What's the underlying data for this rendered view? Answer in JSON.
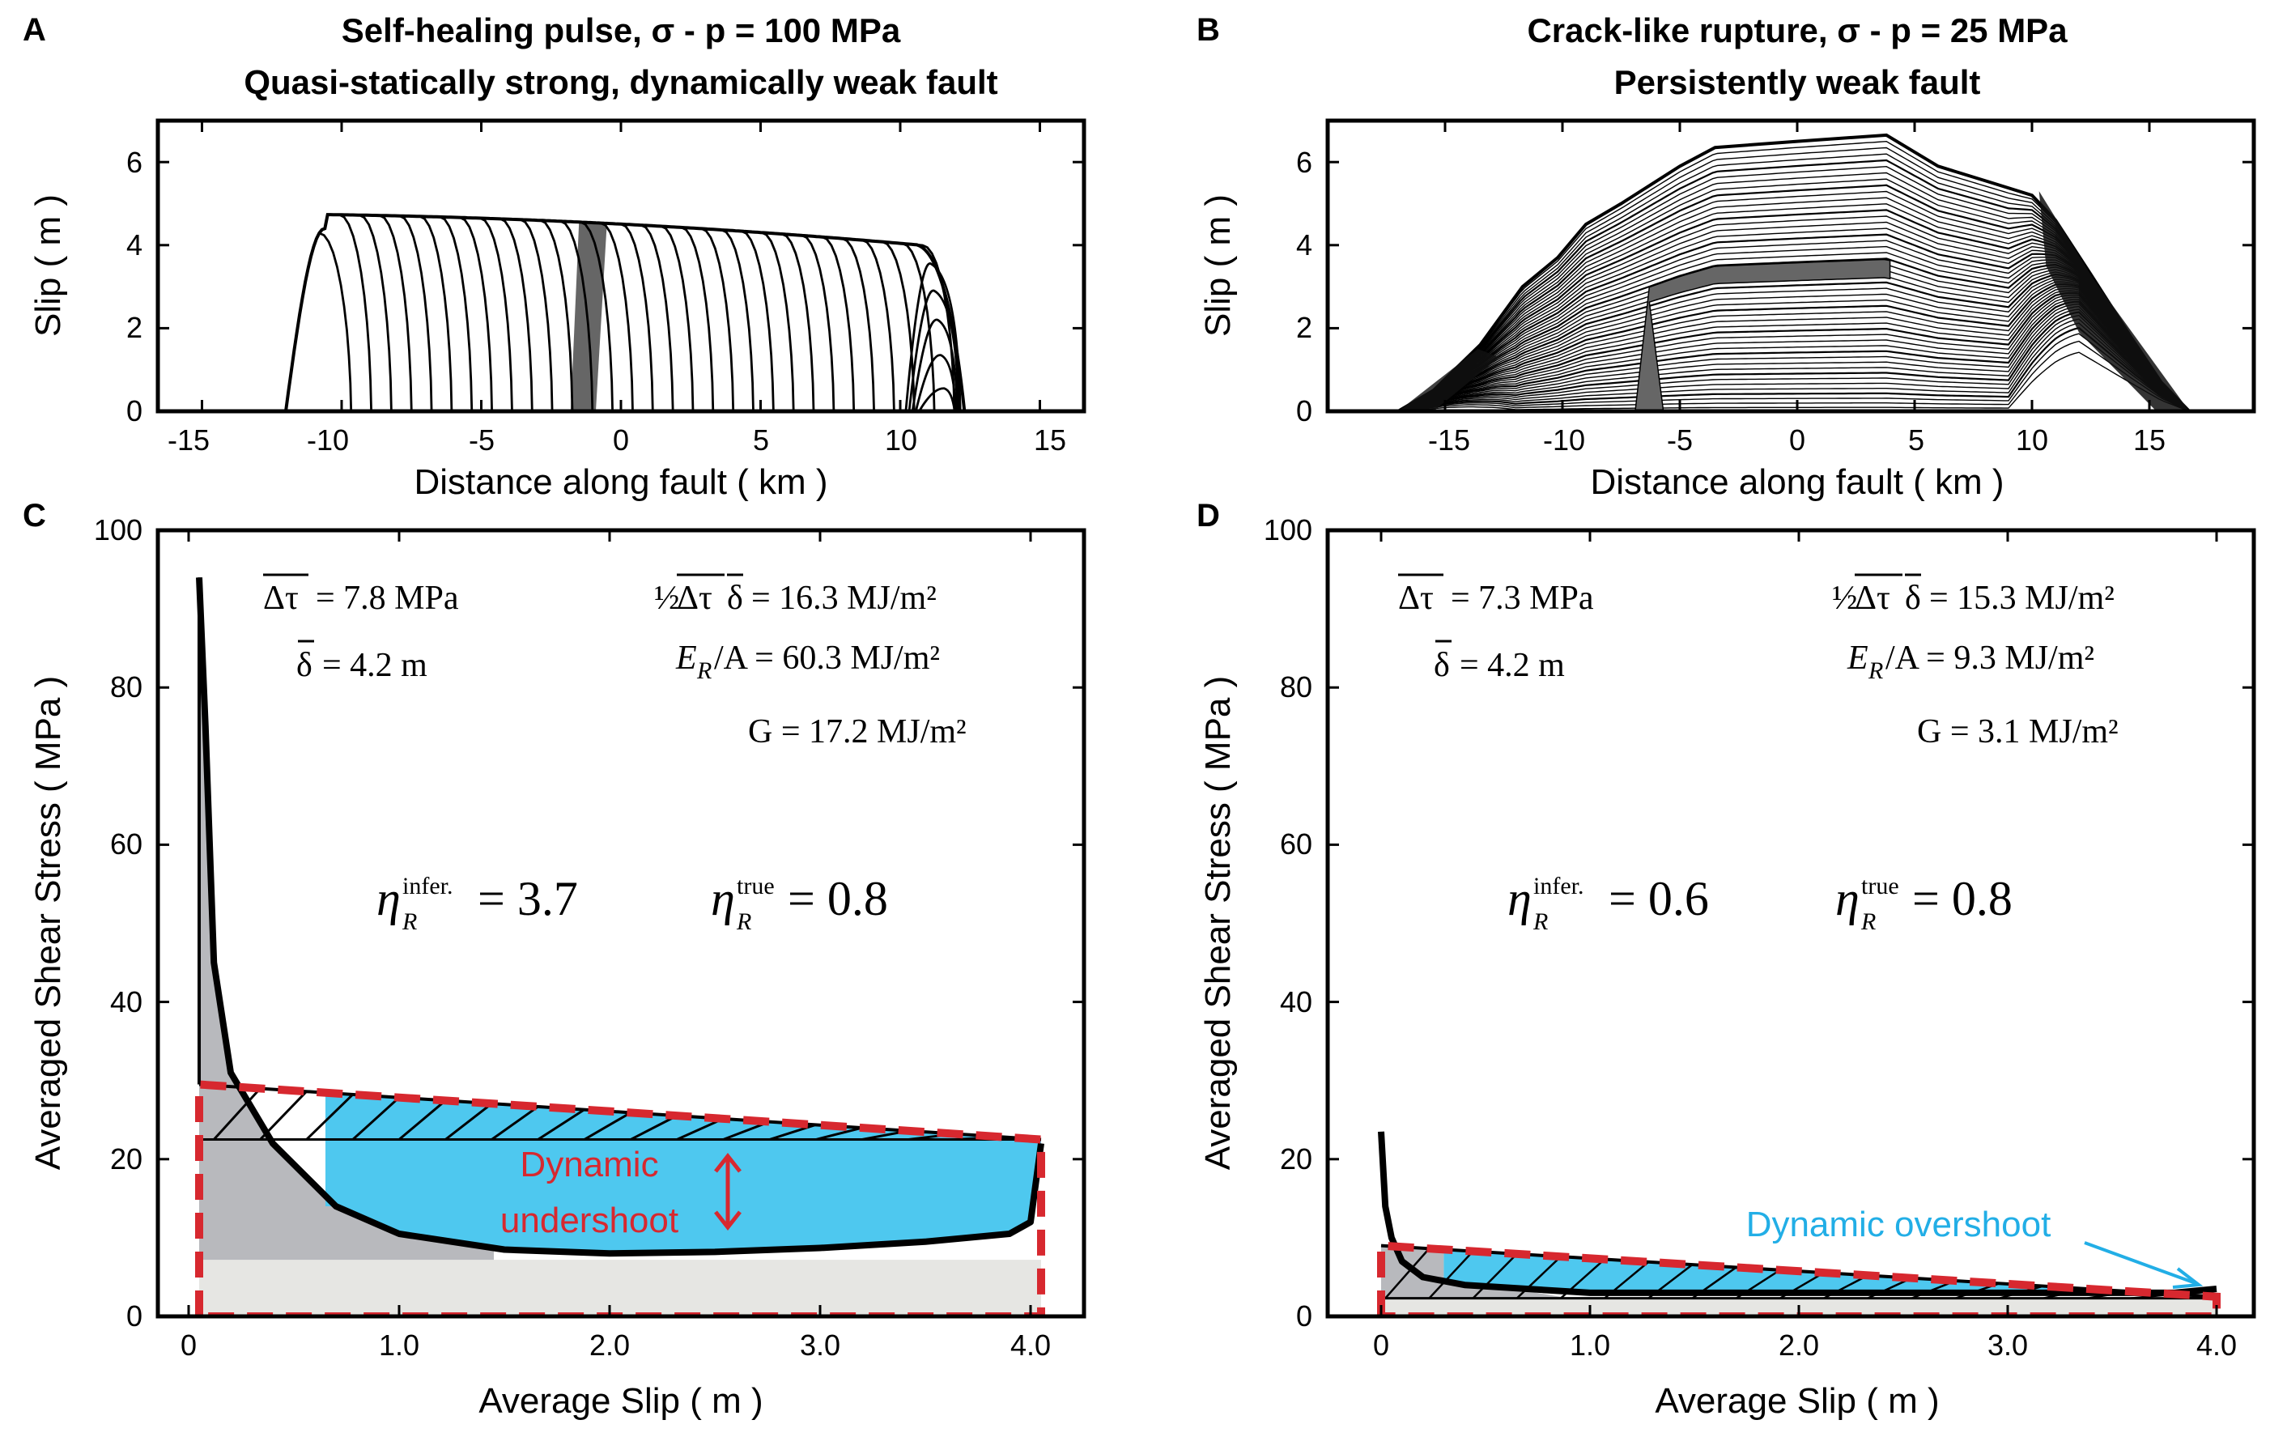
{
  "panels": [
    {
      "letter": "A",
      "title_line1": "Self-healing pulse, σ - p = 100 MPa",
      "title_line2": "Quasi-statically strong, dynamically weak fault",
      "xlabel": "Distance along fault ( km )",
      "ylabel": "Slip ( m )",
      "xticks": [
        "-15",
        "-10",
        "-5",
        "0",
        "5",
        "10",
        "15"
      ],
      "yticks": [
        "0",
        "2",
        "4",
        "6"
      ]
    },
    {
      "letter": "B",
      "title_line1": "Crack-like rupture,  σ - p = 25 MPa",
      "title_line2": "Persistently weak fault",
      "xlabel": "Distance along fault ( km )",
      "ylabel": "Slip ( m )",
      "xticks": [
        "-15",
        "-10",
        "-5",
        "0",
        "5",
        "10",
        "15"
      ],
      "yticks": [
        "0",
        "2",
        "4",
        "6"
      ]
    },
    {
      "letter": "C",
      "xlabel": "Average Slip ( m )",
      "ylabel": "Averaged Shear Stress ( MPa )",
      "xticks": [
        "0",
        "1.0",
        "2.0",
        "3.0",
        "4.0"
      ],
      "yticks": [
        "0",
        "20",
        "40",
        "60",
        "80",
        "100"
      ],
      "eq_dtau_lhs": "Δτ",
      "eq_dtau_rhs": "= 7.8 MPa",
      "eq_delta_lhs": "δ",
      "eq_delta_rhs": "= 4.2 m",
      "eq_half_prefix": "½",
      "eq_half_rhs": "= 16.3 MJ/m²",
      "eq_er_lhs": "E",
      "eq_er_sub": "R",
      "eq_er_rhs": "/A = 60.3 MJ/m²",
      "eq_g": "G = 17.2 MJ/m²",
      "eta_infer_sup": "infer.",
      "eta_infer_val": "= 3.7",
      "eta_true_sup": "true",
      "eta_true_val": "= 0.8",
      "annot_line1": "Dynamic",
      "annot_line2": "undershoot"
    },
    {
      "letter": "D",
      "xlabel": "Average Slip ( m )",
      "ylabel": "Averaged Shear Stress ( MPa )",
      "xticks": [
        "0",
        "1.0",
        "2.0",
        "3.0",
        "4.0"
      ],
      "yticks": [
        "0",
        "20",
        "40",
        "60",
        "80",
        "100"
      ],
      "eq_dtau_lhs": "Δτ",
      "eq_dtau_rhs": "= 7.3 MPa",
      "eq_delta_lhs": "δ",
      "eq_delta_rhs": "= 4.2 m",
      "eq_half_prefix": "½",
      "eq_half_rhs": "= 15.3 MJ/m²",
      "eq_er_lhs": "E",
      "eq_er_sub": "R",
      "eq_er_rhs": "/A = 9.3 MJ/m²",
      "eq_g": "G = 3.1 MJ/m²",
      "eta_infer_sup": "infer.",
      "eta_infer_val": "= 0.6",
      "eta_true_sup": "true",
      "eta_true_val": "= 0.8",
      "annot_line1": "Dynamic overshoot"
    }
  ],
  "colors": {
    "blue_fill": "#4ec8ef",
    "grey_fill": "#b8b9bd",
    "light_grey_fill": "#e6e6e3",
    "red_dashed": "#d7282f",
    "blue_text": "#22aee6",
    "highlight_slip_contour": "#666666"
  },
  "chart_data": [
    {
      "type": "line",
      "panel": "A",
      "x_range": [
        -16.5,
        16.5
      ],
      "y_range": [
        0,
        7
      ],
      "series": [
        {
          "x": [
            -12,
            -10.5,
            -6,
            0,
            5,
            10.5,
            12
          ],
          "y": [
            0,
            4.4,
            4.6,
            4.45,
            4.3,
            4.1,
            0
          ]
        }
      ],
      "notes": "slip contours at successive times for a self-healing pulse; one contour band near x=-1 highlighted grey"
    },
    {
      "type": "line",
      "panel": "B",
      "x_range": [
        -20,
        20
      ],
      "y_range": [
        0,
        7
      ],
      "series": [
        {
          "x": [
            -17,
            -11.5,
            -7,
            -3,
            4,
            10,
            14,
            16.5
          ],
          "y": [
            0,
            3,
            4.8,
            6.3,
            6.6,
            5.2,
            2,
            0
          ]
        }
      ],
      "notes": "crack-like rupture slip contours; highlighted band from x≈-6 to x≈3"
    },
    {
      "type": "line",
      "panel": "C",
      "x_range": [
        -0.2,
        4.2
      ],
      "y_range": [
        0,
        100
      ],
      "series": [
        {
          "x": [
            0.05,
            0.08,
            0.12,
            0.2,
            0.4,
            0.7,
            1.0,
            1.5,
            2.0,
            2.5,
            3.0,
            3.5,
            3.9,
            4.0,
            4.05
          ],
          "y": [
            94,
            75,
            45,
            31,
            22,
            14,
            10.5,
            8.5,
            8,
            8.2,
            8.7,
            9.5,
            10.5,
            12,
            22
          ]
        },
        {
          "x": [
            0.05,
            4.05
          ],
          "y": [
            29.5,
            22.5
          ]
        },
        {
          "x": [
            0.05,
            4.05
          ],
          "y": [
            22.5,
            22.5
          ]
        }
      ]
    },
    {
      "type": "line",
      "panel": "D",
      "x_range": [
        -0.2,
        4.2
      ],
      "y_range": [
        0,
        100
      ],
      "series": [
        {
          "x": [
            0,
            0.02,
            0.05,
            0.1,
            0.2,
            0.4,
            1.0,
            2.0,
            3.0,
            3.8,
            4.0
          ],
          "y": [
            23.5,
            14,
            10,
            7,
            5,
            4,
            3,
            3,
            3,
            3,
            3.5
          ]
        },
        {
          "x": [
            0,
            4.0
          ],
          "y": [
            9,
            2.5
          ]
        },
        {
          "x": [
            0,
            4.0
          ],
          "y": [
            2.3,
            2.3
          ]
        }
      ]
    }
  ]
}
